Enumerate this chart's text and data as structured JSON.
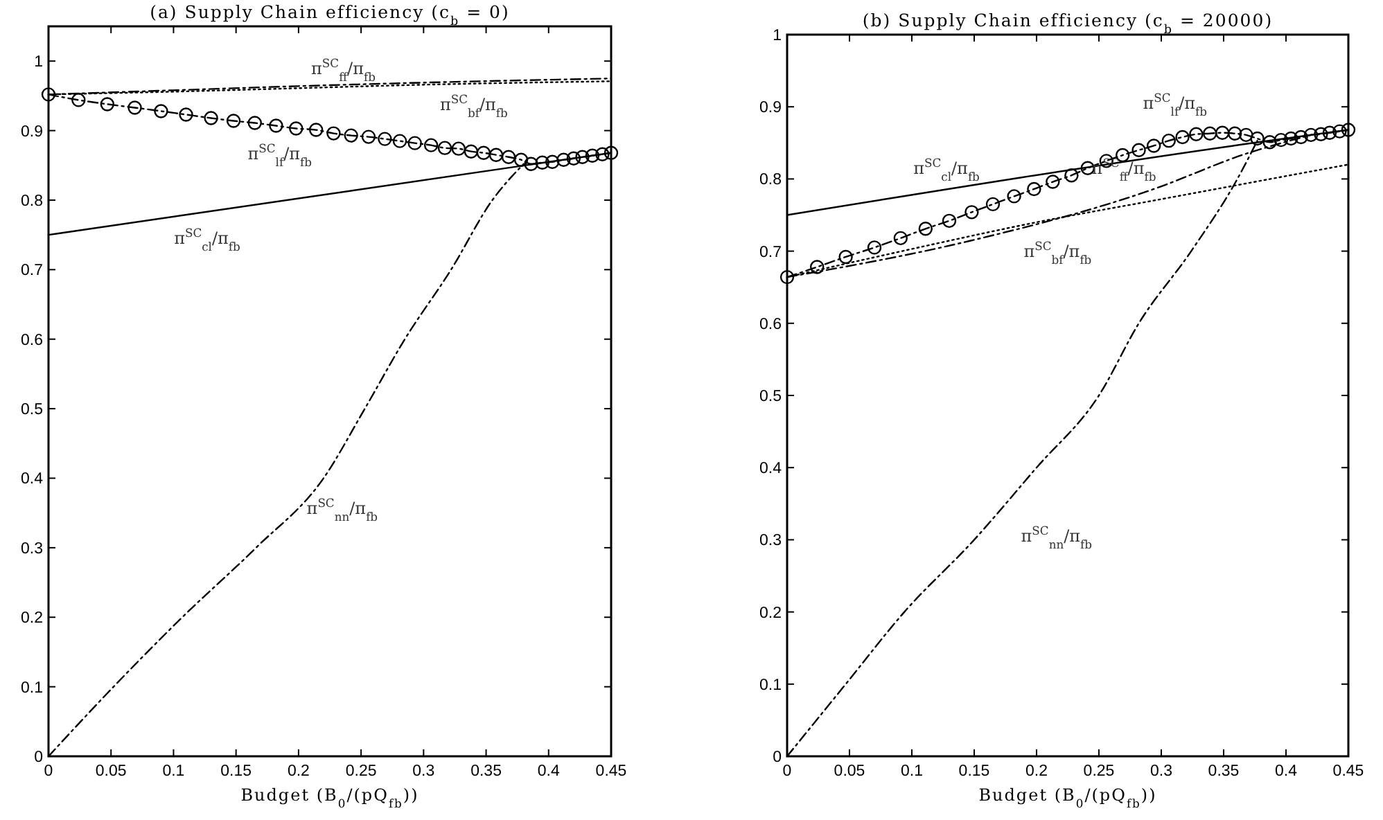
{
  "chart_data": [
    {
      "type": "line",
      "title": "(a) Supply Chain efficiency (c$_{b}$ = 0)",
      "xlabel": "Budget (B$_{0}$/(pQ$_{fb}$))",
      "xlim": [
        0,
        0.45
      ],
      "ylim": [
        0,
        1.05
      ],
      "xticks": [
        0,
        0.05,
        0.1,
        0.15,
        0.2,
        0.25,
        0.3,
        0.35,
        0.4,
        0.45
      ],
      "yticks": [
        0,
        0.1,
        0.2,
        0.3,
        0.4,
        0.5,
        0.6,
        0.7,
        0.8,
        0.9,
        1
      ],
      "grid": false,
      "series": [
        {
          "name": "π$^{SC}$$_{ff}$/π$_{fb}$",
          "color": "#000000",
          "line_style": "dashed",
          "x": [
            0,
            0.1,
            0.2,
            0.3,
            0.45
          ],
          "values": [
            0.952,
            0.958,
            0.964,
            0.969,
            0.975
          ]
        },
        {
          "name": "π$^{SC}$$_{bf}$/π$_{fb}$",
          "color": "#000000",
          "line_style": "dotted",
          "x": [
            0,
            0.1,
            0.2,
            0.3,
            0.45
          ],
          "values": [
            0.952,
            0.956,
            0.961,
            0.966,
            0.971
          ]
        },
        {
          "name": "π$^{SC}$$_{lf}$/π$_{fb}$",
          "color": "#000000",
          "line_style": "dashed",
          "marker": "circle",
          "x": [
            0,
            0.024,
            0.047,
            0.069,
            0.09,
            0.11,
            0.13,
            0.148,
            0.165,
            0.182,
            0.198,
            0.214,
            0.228,
            0.242,
            0.256,
            0.269,
            0.281,
            0.293,
            0.306,
            0.317,
            0.328,
            0.338,
            0.348,
            0.358,
            0.368,
            0.378,
            0.386,
            0.395,
            0.403,
            0.412,
            0.42,
            0.427,
            0.435,
            0.443,
            0.45
          ],
          "values": [
            0.952,
            0.944,
            0.938,
            0.933,
            0.928,
            0.923,
            0.918,
            0.914,
            0.911,
            0.907,
            0.903,
            0.901,
            0.896,
            0.893,
            0.891,
            0.888,
            0.885,
            0.882,
            0.879,
            0.875,
            0.874,
            0.87,
            0.868,
            0.865,
            0.862,
            0.858,
            0.852,
            0.854,
            0.855,
            0.858,
            0.86,
            0.862,
            0.864,
            0.866,
            0.868
          ]
        },
        {
          "name": "π$^{SC}$$_{cl}$/π$_{fb}$",
          "color": "#000000",
          "line_style": "solid",
          "x": [
            0,
            0.385,
            0.45
          ],
          "values": [
            0.75,
            0.851,
            0.868
          ]
        },
        {
          "name": "π$^{SC}$$_{nn}$/π$_{fb}$",
          "color": "#000000",
          "line_style": "dashed",
          "x": [
            0,
            0.052,
            0.107,
            0.166,
            0.22,
            0.253,
            0.285,
            0.322,
            0.355,
            0.38
          ],
          "values": [
            0,
            0.1,
            0.2,
            0.3,
            0.4,
            0.5,
            0.6,
            0.7,
            0.8,
            0.852
          ]
        }
      ]
    },
    {
      "type": "line",
      "title": "(b) Supply Chain efficiency (c$_{b}$ = 20000)",
      "xlabel": "Budget (B$_{0}$/(pQ$_{fb}$))",
      "xlim": [
        0,
        0.45
      ],
      "ylim": [
        0,
        1
      ],
      "xticks": [
        0,
        0.05,
        0.1,
        0.15,
        0.2,
        0.25,
        0.3,
        0.35,
        0.4,
        0.45
      ],
      "yticks": [
        0,
        0.1,
        0.2,
        0.3,
        0.4,
        0.5,
        0.6,
        0.7,
        0.8,
        0.9,
        1
      ],
      "grid": false,
      "series": [
        {
          "name": "π$^{SC}$$_{ff}$/π$_{fb}$",
          "color": "#000000",
          "line_style": "dashed",
          "x": [
            0,
            0.146,
            0.294,
            0.368,
            0.42
          ],
          "values": [
            0.664,
            0.714,
            0.786,
            0.835,
            0.861
          ]
        },
        {
          "name": "π$^{SC}$$_{bf}$/π$_{fb}$",
          "color": "#000000",
          "line_style": "dotted",
          "x": [
            0,
            0.1,
            0.2,
            0.3,
            0.45
          ],
          "values": [
            0.664,
            0.703,
            0.74,
            0.772,
            0.82
          ]
        },
        {
          "name": "π$^{SC}$$_{lf}$/π$_{fb}$",
          "color": "#000000",
          "line_style": "dashed",
          "marker": "circle",
          "x": [
            0,
            0.024,
            0.047,
            0.07,
            0.091,
            0.111,
            0.13,
            0.148,
            0.165,
            0.182,
            0.198,
            0.213,
            0.228,
            0.241,
            0.256,
            0.269,
            0.282,
            0.294,
            0.306,
            0.317,
            0.328,
            0.339,
            0.349,
            0.359,
            0.368,
            0.377,
            0.387,
            0.396,
            0.404,
            0.412,
            0.42,
            0.428,
            0.435,
            0.443,
            0.45
          ],
          "values": [
            0.664,
            0.678,
            0.692,
            0.705,
            0.718,
            0.731,
            0.742,
            0.754,
            0.765,
            0.776,
            0.786,
            0.796,
            0.805,
            0.815,
            0.825,
            0.833,
            0.84,
            0.846,
            0.853,
            0.858,
            0.862,
            0.863,
            0.864,
            0.863,
            0.861,
            0.856,
            0.851,
            0.854,
            0.856,
            0.858,
            0.861,
            0.862,
            0.864,
            0.866,
            0.868
          ]
        },
        {
          "name": "π$^{SC}$$_{cl}$/π$_{fb}$",
          "color": "#000000",
          "line_style": "solid",
          "x": [
            0,
            0.374,
            0.45
          ],
          "values": [
            0.75,
            0.85,
            0.868
          ]
        },
        {
          "name": "π$^{SC}$$_{nn}$/π$_{fb}$",
          "color": "#000000",
          "line_style": "dashed",
          "x": [
            0,
            0.047,
            0.094,
            0.15,
            0.2,
            0.25,
            0.282,
            0.324,
            0.361,
            0.377
          ],
          "values": [
            0,
            0.1,
            0.2,
            0.3,
            0.4,
            0.5,
            0.6,
            0.7,
            0.8,
            0.853
          ]
        }
      ]
    }
  ]
}
